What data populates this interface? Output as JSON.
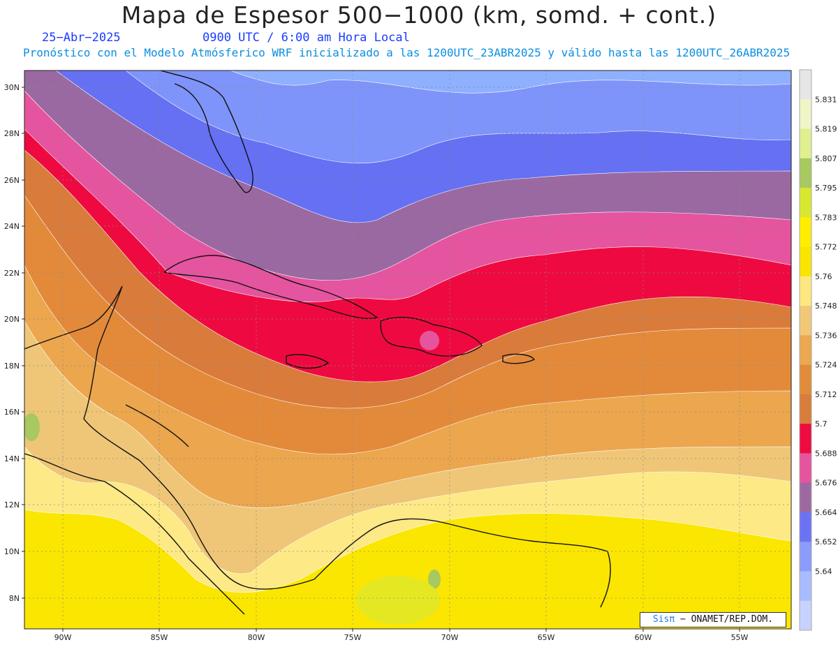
{
  "title": "Mapa de Espesor 500−1000 (km, somd. + cont.)",
  "date": "25−Abr−2025",
  "time": "0900 UTC / 6:00 am Hora Local",
  "forecast_note": "Pronóstico con el Modelo Atmósferico WRF inicializado a las 1200UTC_23ABR2025 y válido hasta las  1200UTC_26ABR2025",
  "credit": {
    "sis": "Sisπ",
    "rest": "− ONAMET/REP.DOM."
  },
  "lat_labels": [
    "30N",
    "28N",
    "26N",
    "24N",
    "22N",
    "20N",
    "18N",
    "16N",
    "14N",
    "12N",
    "10N",
    "8N"
  ],
  "lon_labels": [
    "90W",
    "85W",
    "80W",
    "75W",
    "70W",
    "65W",
    "60W",
    "55W"
  ],
  "colorbar": {
    "labels": [
      "5.831",
      "5.819",
      "5.807",
      "5.795",
      "5.783",
      "5.772",
      "5.76",
      "5.748",
      "5.736",
      "5.724",
      "5.712",
      "5.7",
      "5.688",
      "5.676",
      "5.664",
      "5.652",
      "5.64"
    ],
    "colors": [
      "#e6e6e6",
      "#f0f5c8",
      "#e0f090",
      "#a8c860",
      "#d8e830",
      "#ffee00",
      "#fae500",
      "#fde880",
      "#f0c878",
      "#eba850",
      "#e08c3a",
      "#d87d3c",
      "#ee0b3f",
      "#e6549e",
      "#9c6aa0",
      "#6b73f4",
      "#8a9cfc",
      "#a8bcff",
      "#c8d2fe"
    ]
  },
  "map": {
    "band_colors": [
      "#cfd6fe",
      "#8fb0fe",
      "#7f94fa",
      "#6570f3",
      "#9b69a1",
      "#e5549e",
      "#ee0a40",
      "#d97b3b",
      "#e38a3a",
      "#eba64e",
      "#efc677",
      "#fde985",
      "#fae600",
      "#dee92c"
    ]
  }
}
